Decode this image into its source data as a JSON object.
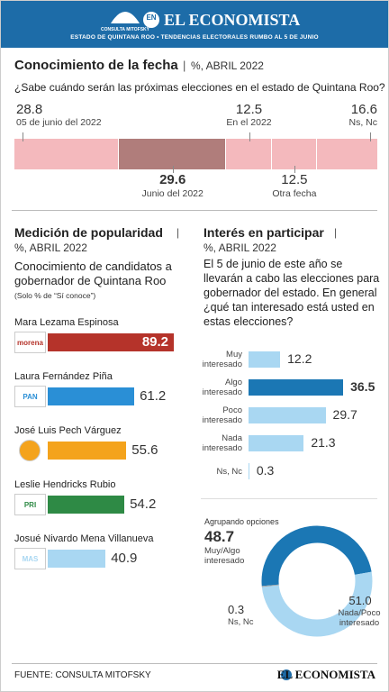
{
  "header": {
    "logo_text": "CONSULTA MITOFSKY",
    "edition": "EN",
    "brand": "EL ECONOMISTA",
    "subtitle": "ESTADO DE QUINTANA ROO • TENDENCIAS ELECTORALES RUMBO AL 5 DE JUNIO"
  },
  "chart_data": [
    {
      "type": "stacked-bar",
      "title": "Conocimiento de la fecha",
      "separator": "|",
      "subtitle": "%, ABRIL 2022",
      "question": "¿Sabe cuándo serán las próximas elecciones en el estado de Quintana Roo?",
      "categories": [
        "05 de junio del 2022",
        "Junio del 2022",
        "En el 2022",
        "Otra fecha",
        "Ns, Nc"
      ],
      "values": [
        28.8,
        29.6,
        12.5,
        12.5,
        16.6
      ],
      "colors": [
        "#f4b9bd",
        "#b07d7b",
        "#f4b9bd",
        "#f4b9bd",
        "#f4b9bd"
      ],
      "xlim": [
        0,
        100
      ]
    },
    {
      "type": "hbar",
      "title": "Medición de popularidad",
      "separator": "|",
      "subtitle": "%, ABRIL 2022",
      "question": "Conocimiento de candidatos a gobernador de Quintana Roo",
      "note": "(Solo % de “Sí conoce”)",
      "categories": [
        "Mara Lezama Espinosa",
        "Laura Fernández Piña",
        "José Luis Pech Várguez",
        "Leslie Hendricks Rubio",
        "Josué Nivardo Mena Villanueva"
      ],
      "party_labels": [
        "morena",
        "PAN",
        null,
        "PRI",
        "MAS"
      ],
      "values": [
        89.2,
        61.2,
        55.6,
        54.2,
        40.9
      ],
      "colors": [
        "#b5332a",
        "#2a8fd6",
        "#f4a31c",
        "#2e8a45",
        "#a9d7f2"
      ],
      "xlim": [
        0,
        100
      ]
    },
    {
      "type": "hbar",
      "title": "Interés en participar",
      "separator": "|",
      "subtitle": "%, ABRIL 2022",
      "question": "El 5 de junio de este año se llevarán a cabo las elecciones para gobernador del estado. En general ¿qué tan interesado está usted en estas elecciones?",
      "categories": [
        "Muy interesado",
        "Algo interesado",
        "Poco interesado",
        "Nada interesado",
        "Ns, Nc"
      ],
      "values": [
        12.2,
        36.5,
        29.7,
        21.3,
        0.3
      ],
      "colors": [
        "#a9d7f2",
        "#1b77b4",
        "#a9d7f2",
        "#a9d7f2",
        "#a9d7f2"
      ],
      "xlim": [
        0,
        50
      ]
    },
    {
      "type": "donut",
      "title": "Agrupando opciones",
      "categories": [
        "Muy/Algo interesado",
        "Nada/Poco interesado",
        "Ns, Nc"
      ],
      "values": [
        48.7,
        51.0,
        0.3
      ],
      "value_labels": [
        "48.7",
        "51.0",
        "0.3"
      ],
      "colors": [
        "#1b77b4",
        "#a9d7f2",
        "#9aa3a8"
      ]
    }
  ],
  "footer": {
    "source": "FUENTE: CONSULTA MITOFSKY",
    "brand": "EL ECONOMISTA"
  }
}
